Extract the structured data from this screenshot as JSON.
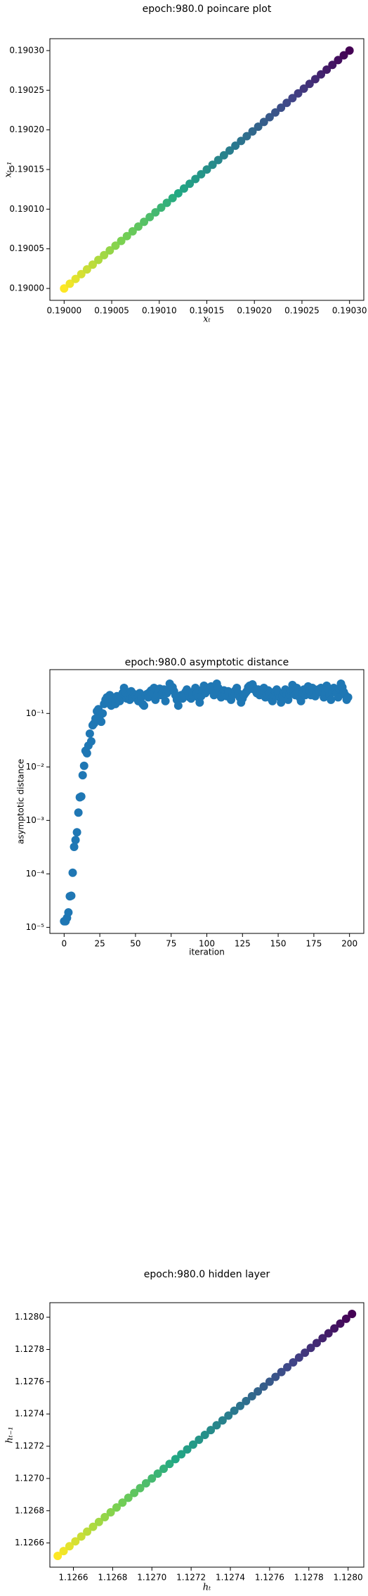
{
  "chart_data": [
    {
      "type": "scatter",
      "title": "epoch:980.0 poincare plot",
      "xlabel": "xₜ",
      "ylabel": "xₜ₋₁",
      "colormap": [
        "#fde725",
        "#7ad151",
        "#22a884",
        "#2a788e",
        "#414487",
        "#440154"
      ],
      "x": [
        0.19,
        0.190006,
        0.190012,
        0.190018,
        0.190024,
        0.19003,
        0.190036,
        0.190042,
        0.190048,
        0.190054,
        0.19006,
        0.190066,
        0.190072,
        0.190078,
        0.190084,
        0.19009,
        0.190096,
        0.190102,
        0.190108,
        0.190114,
        0.19012,
        0.190126,
        0.190132,
        0.190138,
        0.190144,
        0.19015,
        0.190156,
        0.190162,
        0.190168,
        0.190174,
        0.19018,
        0.190186,
        0.190192,
        0.190198,
        0.190204,
        0.19021,
        0.190216,
        0.190222,
        0.190228,
        0.190234,
        0.19024,
        0.190246,
        0.190252,
        0.190258,
        0.190264,
        0.19027,
        0.190276,
        0.190282,
        0.190288,
        0.190294,
        0.1903
      ],
      "y": [
        0.19,
        0.190006,
        0.190012,
        0.190018,
        0.190024,
        0.19003,
        0.190036,
        0.190042,
        0.190048,
        0.190054,
        0.19006,
        0.190066,
        0.190072,
        0.190078,
        0.190084,
        0.19009,
        0.190096,
        0.190102,
        0.190108,
        0.190114,
        0.19012,
        0.190126,
        0.190132,
        0.190138,
        0.190144,
        0.19015,
        0.190156,
        0.190162,
        0.190168,
        0.190174,
        0.19018,
        0.190186,
        0.190192,
        0.190198,
        0.190204,
        0.19021,
        0.190216,
        0.190222,
        0.190228,
        0.190234,
        0.19024,
        0.190246,
        0.190252,
        0.190258,
        0.190264,
        0.19027,
        0.190276,
        0.190282,
        0.190288,
        0.190294,
        0.1903
      ],
      "xlim": [
        0.189985,
        0.190315
      ],
      "ylim": [
        0.189985,
        0.190315
      ],
      "xticks": [
        {
          "value": 0.19,
          "label": "0.19000"
        },
        {
          "value": 0.19005,
          "label": "0.19005"
        },
        {
          "value": 0.1901,
          "label": "0.19010"
        },
        {
          "value": 0.19015,
          "label": "0.19015"
        },
        {
          "value": 0.1902,
          "label": "0.19020"
        },
        {
          "value": 0.19025,
          "label": "0.19025"
        },
        {
          "value": 0.1903,
          "label": "0.19030"
        }
      ],
      "yticks": [
        {
          "value": 0.19,
          "label": "0.19000"
        },
        {
          "value": 0.19005,
          "label": "0.19005"
        },
        {
          "value": 0.1901,
          "label": "0.19010"
        },
        {
          "value": 0.19015,
          "label": "0.19015"
        },
        {
          "value": 0.1902,
          "label": "0.19020"
        },
        {
          "value": 0.19025,
          "label": "0.19025"
        },
        {
          "value": 0.1903,
          "label": "0.19030"
        }
      ]
    },
    {
      "type": "scatter",
      "title": "epoch:980.0 asymptotic distance",
      "xlabel": "iteration",
      "ylabel": "asymptotic distance",
      "color": "#1f77b4",
      "ylog": true,
      "x": [
        0,
        1,
        2,
        3,
        4,
        5,
        6,
        7,
        8,
        9,
        10,
        11,
        12,
        13,
        14,
        15,
        16,
        17,
        18,
        19,
        20,
        21,
        22,
        23,
        24,
        25,
        26,
        27,
        28,
        29,
        30,
        31,
        32,
        33,
        34,
        35,
        36,
        37,
        38,
        39,
        40,
        41,
        42,
        43,
        44,
        45,
        46,
        47,
        48,
        49,
        50,
        51,
        52,
        53,
        54,
        55,
        56,
        57,
        58,
        59,
        60,
        61,
        62,
        63,
        64,
        65,
        66,
        67,
        68,
        69,
        70,
        71,
        72,
        73,
        74,
        75,
        76,
        77,
        78,
        79,
        80,
        81,
        82,
        83,
        84,
        85,
        86,
        87,
        88,
        89,
        90,
        91,
        92,
        93,
        94,
        95,
        96,
        97,
        98,
        99,
        100,
        101,
        102,
        103,
        104,
        105,
        106,
        107,
        108,
        109,
        110,
        111,
        112,
        113,
        114,
        115,
        116,
        117,
        118,
        119,
        120,
        121,
        122,
        123,
        124,
        125,
        126,
        127,
        128,
        129,
        130,
        131,
        132,
        133,
        134,
        135,
        136,
        137,
        138,
        139,
        140,
        141,
        142,
        143,
        144,
        145,
        146,
        147,
        148,
        149,
        150,
        151,
        152,
        153,
        154,
        155,
        156,
        157,
        158,
        159,
        160,
        161,
        162,
        163,
        164,
        165,
        166,
        167,
        168,
        169,
        170,
        171,
        172,
        173,
        174,
        175,
        176,
        177,
        178,
        179,
        180,
        181,
        182,
        183,
        184,
        185,
        186,
        187,
        188,
        189,
        190,
        191,
        192,
        193,
        194,
        195,
        196,
        197,
        198,
        199
      ],
      "y": [
        1.3e-05,
        1.3e-05,
        1.5e-05,
        1.9e-05,
        3.8e-05,
        3.9e-05,
        0.000105,
        0.00032,
        0.00043,
        0.0006,
        0.0014,
        0.0027,
        0.0028,
        0.007,
        0.0105,
        0.02,
        0.018,
        0.025,
        0.042,
        0.03,
        0.06,
        0.065,
        0.08,
        0.11,
        0.12,
        0.09,
        0.07,
        0.1,
        0.15,
        0.18,
        0.2,
        0.16,
        0.22,
        0.14,
        0.17,
        0.19,
        0.15,
        0.21,
        0.18,
        0.17,
        0.2,
        0.24,
        0.3,
        0.25,
        0.19,
        0.22,
        0.18,
        0.26,
        0.2,
        0.23,
        0.21,
        0.19,
        0.17,
        0.24,
        0.2,
        0.15,
        0.14,
        0.22,
        0.23,
        0.2,
        0.25,
        0.27,
        0.24,
        0.3,
        0.18,
        0.22,
        0.26,
        0.29,
        0.22,
        0.25,
        0.28,
        0.17,
        0.24,
        0.27,
        0.36,
        0.3,
        0.31,
        0.26,
        0.22,
        0.18,
        0.14,
        0.2,
        0.22,
        0.19,
        0.21,
        0.25,
        0.28,
        0.23,
        0.2,
        0.19,
        0.22,
        0.26,
        0.3,
        0.24,
        0.2,
        0.16,
        0.21,
        0.28,
        0.33,
        0.24,
        0.27,
        0.3,
        0.28,
        0.32,
        0.26,
        0.22,
        0.24,
        0.36,
        0.3,
        0.25,
        0.2,
        0.24,
        0.27,
        0.23,
        0.21,
        0.26,
        0.2,
        0.18,
        0.22,
        0.25,
        0.27,
        0.3,
        0.24,
        0.2,
        0.16,
        0.19,
        0.22,
        0.24,
        0.26,
        0.31,
        0.33,
        0.29,
        0.35,
        0.3,
        0.27,
        0.24,
        0.28,
        0.22,
        0.26,
        0.25,
        0.3,
        0.2,
        0.23,
        0.27,
        0.24,
        0.19,
        0.17,
        0.22,
        0.26,
        0.28,
        0.24,
        0.2,
        0.16,
        0.21,
        0.25,
        0.28,
        0.22,
        0.18,
        0.23,
        0.27,
        0.34,
        0.26,
        0.22,
        0.3,
        0.25,
        0.2,
        0.17,
        0.24,
        0.28,
        0.22,
        0.26,
        0.32,
        0.27,
        0.22,
        0.3,
        0.25,
        0.21,
        0.24,
        0.28,
        0.26,
        0.3,
        0.24,
        0.2,
        0.26,
        0.33,
        0.28,
        0.22,
        0.18,
        0.25,
        0.3,
        0.27,
        0.24,
        0.2,
        0.29,
        0.36,
        0.31,
        0.25,
        0.22,
        0.18,
        0.2
      ],
      "xlim": [
        -10,
        210
      ],
      "ylim": [
        7.7e-06,
        0.66
      ],
      "xticks": [
        0,
        25,
        50,
        75,
        100,
        125,
        150,
        175,
        200
      ],
      "yticks": [
        {
          "value": 1e-05,
          "label": "10⁻⁵"
        },
        {
          "value": 0.0001,
          "label": "10⁻⁴"
        },
        {
          "value": 0.001,
          "label": "10⁻³"
        },
        {
          "value": 0.01,
          "label": "10⁻²"
        },
        {
          "value": 0.1,
          "label": "10⁻¹"
        }
      ]
    },
    {
      "type": "scatter",
      "title": "epoch:980.0 hidden layer",
      "xlabel": "hₜ",
      "ylabel": "hₜ₋₁",
      "colormap": [
        "#fde725",
        "#7ad151",
        "#22a884",
        "#2a788e",
        "#414487",
        "#440154"
      ],
      "x": [
        1.12652,
        1.12655,
        1.12658,
        1.12661,
        1.12664,
        1.12667,
        1.1267,
        1.12673,
        1.12676,
        1.12679,
        1.12682,
        1.12685,
        1.12688,
        1.12691,
        1.12694,
        1.12697,
        1.127,
        1.12703,
        1.12706,
        1.12709,
        1.12712,
        1.12715,
        1.12718,
        1.12721,
        1.12724,
        1.12727,
        1.1273,
        1.12733,
        1.12736,
        1.12739,
        1.12742,
        1.12745,
        1.12748,
        1.12751,
        1.12754,
        1.12757,
        1.1276,
        1.12763,
        1.12766,
        1.12769,
        1.12772,
        1.12775,
        1.12778,
        1.12781,
        1.12784,
        1.12787,
        1.1279,
        1.12793,
        1.12796,
        1.12799,
        1.12802
      ],
      "y": [
        1.12652,
        1.12655,
        1.12658,
        1.12661,
        1.12664,
        1.12667,
        1.1267,
        1.12673,
        1.12676,
        1.12679,
        1.12682,
        1.12685,
        1.12688,
        1.12691,
        1.12694,
        1.12697,
        1.127,
        1.12703,
        1.12706,
        1.12709,
        1.12712,
        1.12715,
        1.12718,
        1.12721,
        1.12724,
        1.12727,
        1.1273,
        1.12733,
        1.12736,
        1.12739,
        1.12742,
        1.12745,
        1.12748,
        1.12751,
        1.12754,
        1.12757,
        1.1276,
        1.12763,
        1.12766,
        1.12769,
        1.12772,
        1.12775,
        1.12778,
        1.12781,
        1.12784,
        1.12787,
        1.1279,
        1.12793,
        1.12796,
        1.12799,
        1.12802
      ],
      "xlim": [
        1.12648,
        1.12808
      ],
      "ylim": [
        1.12645,
        1.12809
      ],
      "xticks": [
        1.1266,
        1.1268,
        {
          "value": 1.127,
          "label": "1.1270"
        },
        1.1272,
        1.1274,
        1.1276,
        1.1278,
        {
          "value": 1.128,
          "label": "1.1280"
        }
      ],
      "yticks": [
        1.1266,
        1.1268,
        {
          "value": 1.127,
          "label": "1.1270"
        },
        1.1272,
        1.1274,
        1.1276,
        1.1278,
        {
          "value": 1.128,
          "label": "1.1280"
        }
      ]
    }
  ]
}
